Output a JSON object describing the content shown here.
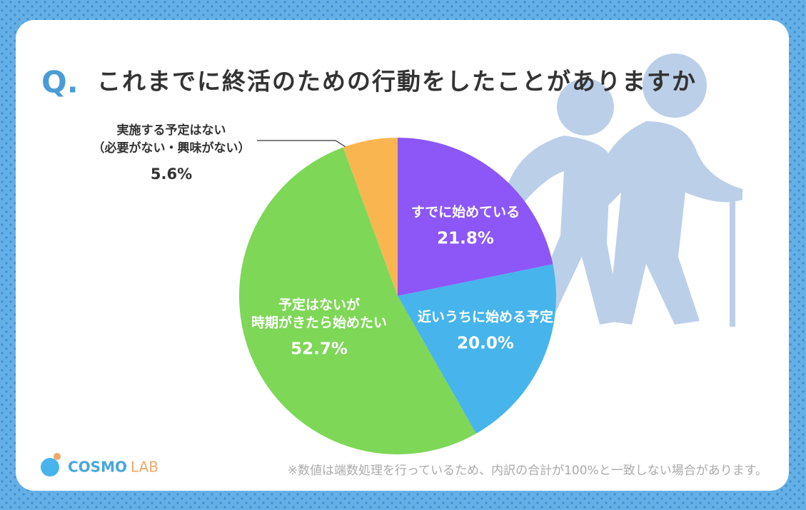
{
  "chart_data": {
    "type": "pie",
    "title_mark": "Q.",
    "title": "これまでに終活のための行動をしたことがありますか",
    "categories": [
      [
        "すでに始めている"
      ],
      [
        "近いうちに始める予定"
      ],
      [
        "予定はないが",
        "時期がきたら始めたい"
      ],
      [
        "実施する予定はない",
        "（必要がない・興味がない）"
      ]
    ],
    "values": [
      21.8,
      20.0,
      52.7,
      5.6
    ],
    "value_labels": [
      "21.8%",
      "20.0%",
      "52.7%",
      "5.6%"
    ],
    "colors": [
      "#8c57f6",
      "#47b4ec",
      "#7ed757",
      "#f9b650"
    ],
    "note": "※数値は端数処理を行っているため、内訳の合計が100%と一致しない場合があります。",
    "logo": [
      "COSMO",
      "LAB"
    ]
  }
}
